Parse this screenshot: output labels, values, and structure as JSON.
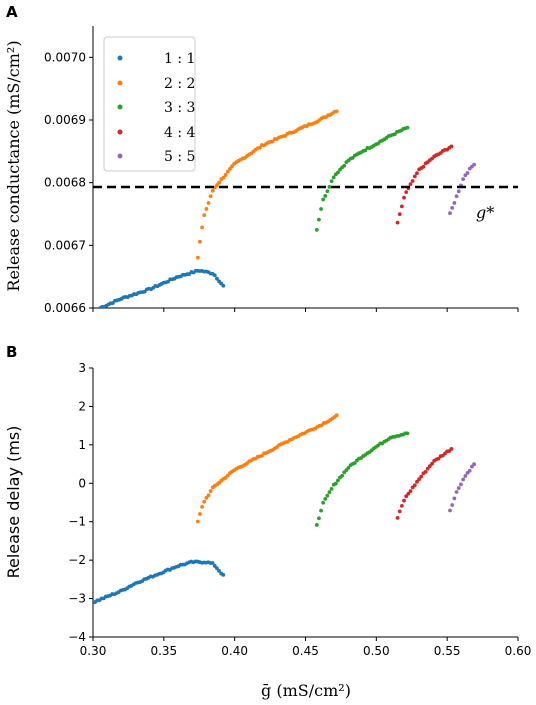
{
  "chart_data": [
    {
      "panel": "A",
      "type": "scatter",
      "xlabel": "",
      "ylabel": "Release conductance (mS/cm²)",
      "xlim": [
        0.3,
        0.6
      ],
      "ylim": [
        0.0066,
        0.00705
      ],
      "x_ticks": [
        0.3,
        0.35,
        0.4,
        0.45,
        0.5,
        0.55,
        0.6
      ],
      "y_ticks": [
        {
          "value": 0.0066,
          "label": "0.0066"
        },
        {
          "value": 0.0067,
          "label": "0.0067"
        },
        {
          "value": 0.0068,
          "label": "0.0068"
        },
        {
          "value": 0.0069,
          "label": "0.0069"
        },
        {
          "value": 0.007,
          "label": "0.0070"
        }
      ],
      "hline": {
        "y": 0.006793,
        "label": "g*",
        "style": "dashed",
        "color": "#000000"
      },
      "legend": {
        "placement": "top-left"
      },
      "series": [
        {
          "name": "1 : 1",
          "color": "#1f77b4",
          "x_range": [
            0.3,
            0.392
          ],
          "points": [
            [
              0.305,
              0.0066
            ],
            [
              0.32,
              0.006615
            ],
            [
              0.34,
              0.00663
            ],
            [
              0.36,
              0.00665
            ],
            [
              0.375,
              0.00666
            ],
            [
              0.385,
              0.006655
            ],
            [
              0.392,
              0.006635
            ]
          ]
        },
        {
          "name": "2 : 2",
          "color": "#ff7f0e",
          "x_range": [
            0.374,
            0.472
          ],
          "points": [
            [
              0.374,
              0.00668
            ],
            [
              0.378,
              0.006745
            ],
            [
              0.385,
              0.00679
            ],
            [
              0.4,
              0.00683
            ],
            [
              0.42,
              0.00686
            ],
            [
              0.44,
              0.00688
            ],
            [
              0.46,
              0.0069
            ],
            [
              0.472,
              0.006915
            ]
          ]
        },
        {
          "name": "3 : 3",
          "color": "#2ca02c",
          "x_range": [
            0.458,
            0.522
          ],
          "points": [
            [
              0.458,
              0.006725
            ],
            [
              0.462,
              0.00677
            ],
            [
              0.47,
              0.00681
            ],
            [
              0.48,
              0.006835
            ],
            [
              0.49,
              0.00685
            ],
            [
              0.5,
              0.006862
            ],
            [
              0.51,
              0.006875
            ],
            [
              0.522,
              0.006888
            ]
          ]
        },
        {
          "name": "4 : 4",
          "color": "#d62728",
          "x_range": [
            0.515,
            0.553
          ],
          "points": [
            [
              0.515,
              0.006735
            ],
            [
              0.52,
              0.00678
            ],
            [
              0.53,
              0.00682
            ],
            [
              0.54,
              0.00684
            ],
            [
              0.553,
              0.006858
            ]
          ]
        },
        {
          "name": "5 : 5",
          "color": "#9467bd",
          "x_range": [
            0.552,
            0.569
          ],
          "points": [
            [
              0.552,
              0.00675
            ],
            [
              0.557,
              0.00678
            ],
            [
              0.562,
              0.00681
            ],
            [
              0.569,
              0.00683
            ]
          ]
        }
      ]
    },
    {
      "panel": "B",
      "type": "scatter",
      "xlabel": "ḡ (mS/cm²)",
      "ylabel": "Release delay (ms)",
      "xlim": [
        0.3,
        0.6
      ],
      "ylim": [
        -4,
        3
      ],
      "x_ticks": [
        {
          "value": 0.3,
          "label": "0.30"
        },
        {
          "value": 0.35,
          "label": "0.35"
        },
        {
          "value": 0.4,
          "label": "0.40"
        },
        {
          "value": 0.45,
          "label": "0.45"
        },
        {
          "value": 0.5,
          "label": "0.50"
        },
        {
          "value": 0.55,
          "label": "0.55"
        },
        {
          "value": 0.6,
          "label": "0.60"
        }
      ],
      "y_ticks": [
        {
          "value": -4,
          "label": "−4"
        },
        {
          "value": -3,
          "label": "−3"
        },
        {
          "value": -2,
          "label": "−2"
        },
        {
          "value": -1,
          "label": "−1"
        },
        {
          "value": 0,
          "label": "0"
        },
        {
          "value": 1,
          "label": "1"
        },
        {
          "value": 2,
          "label": "2"
        },
        {
          "value": 3,
          "label": "3"
        }
      ],
      "series": [
        {
          "name": "1 : 1",
          "color": "#1f77b4",
          "points": [
            [
              0.3,
              -3.1
            ],
            [
              0.31,
              -2.95
            ],
            [
              0.32,
              -2.8
            ],
            [
              0.33,
              -2.6
            ],
            [
              0.34,
              -2.45
            ],
            [
              0.35,
              -2.3
            ],
            [
              0.36,
              -2.15
            ],
            [
              0.37,
              -2.05
            ],
            [
              0.38,
              -2.05
            ],
            [
              0.385,
              -2.1
            ],
            [
              0.392,
              -2.4
            ]
          ]
        },
        {
          "name": "2 : 2",
          "color": "#ff7f0e",
          "points": [
            [
              0.374,
              -1.0
            ],
            [
              0.378,
              -0.5
            ],
            [
              0.385,
              -0.1
            ],
            [
              0.4,
              0.35
            ],
            [
              0.42,
              0.75
            ],
            [
              0.44,
              1.15
            ],
            [
              0.46,
              1.5
            ],
            [
              0.472,
              1.75
            ]
          ]
        },
        {
          "name": "3 : 3",
          "color": "#2ca02c",
          "points": [
            [
              0.458,
              -1.1
            ],
            [
              0.462,
              -0.55
            ],
            [
              0.47,
              -0.05
            ],
            [
              0.48,
              0.4
            ],
            [
              0.49,
              0.7
            ],
            [
              0.5,
              0.95
            ],
            [
              0.51,
              1.2
            ],
            [
              0.522,
              1.3
            ]
          ]
        },
        {
          "name": "4 : 4",
          "color": "#d62728",
          "points": [
            [
              0.515,
              -0.9
            ],
            [
              0.52,
              -0.4
            ],
            [
              0.53,
              0.1
            ],
            [
              0.54,
              0.55
            ],
            [
              0.553,
              0.9
            ]
          ]
        },
        {
          "name": "5 : 5",
          "color": "#9467bd",
          "points": [
            [
              0.552,
              -0.7
            ],
            [
              0.557,
              -0.2
            ],
            [
              0.562,
              0.15
            ],
            [
              0.569,
              0.5
            ]
          ]
        }
      ]
    }
  ],
  "panels": [
    {
      "label": "A"
    },
    {
      "label": "B"
    }
  ],
  "axes": {
    "top_ylabel": "Release conductance (mS/cm²)",
    "bottom_ylabel": "Release delay (ms)",
    "xlabel": "ḡ (mS/cm²)",
    "hline_label": "g*"
  },
  "legend_entries": [
    {
      "label": "1 : 1",
      "color": "#1f77b4"
    },
    {
      "label": "2 : 2",
      "color": "#ff7f0e"
    },
    {
      "label": "3 : 3",
      "color": "#2ca02c"
    },
    {
      "label": "4 : 4",
      "color": "#d62728"
    },
    {
      "label": "5 : 5",
      "color": "#9467bd"
    }
  ]
}
